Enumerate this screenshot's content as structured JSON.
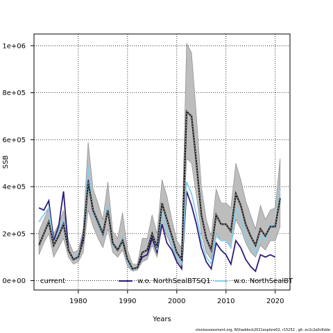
{
  "footer": "stockassessment.org, NShaddock2021explore02, r15252 , git: ec2c2a0c6dde",
  "chart_data": {
    "type": "line",
    "xlabel": "Years",
    "ylabel": "SSB",
    "xlim": [
      1971,
      2023
    ],
    "ylim": [
      -40000,
      1050000
    ],
    "grid": true,
    "xticks": [
      1980,
      1990,
      2000,
      2010,
      2020
    ],
    "yticks": [
      {
        "value": 0,
        "label": "0e+00"
      },
      {
        "value": 200000,
        "label": "2e+05"
      },
      {
        "value": 400000,
        "label": "4e+05"
      },
      {
        "value": 600000,
        "label": "6e+05"
      },
      {
        "value": 800000,
        "label": "8e+05"
      },
      {
        "value": 1000000,
        "label": "1e+06"
      }
    ],
    "legend_position": "bottom",
    "x": [
      1972,
      1973,
      1974,
      1975,
      1976,
      1977,
      1978,
      1979,
      1980,
      1981,
      1982,
      1983,
      1984,
      1985,
      1986,
      1987,
      1988,
      1989,
      1990,
      1991,
      1992,
      1993,
      1994,
      1995,
      1996,
      1997,
      1998,
      1999,
      2000,
      2001,
      2002,
      2003,
      2004,
      2005,
      2006,
      2007,
      2008,
      2009,
      2010,
      2011,
      2012,
      2013,
      2014,
      2015,
      2016,
      2017,
      2018,
      2019,
      2020,
      2021
    ],
    "series": [
      {
        "name": "current",
        "color": "#111111",
        "values": [
          150000,
          200000,
          250000,
          150000,
          190000,
          240000,
          130000,
          90000,
          100000,
          170000,
          420000,
          300000,
          250000,
          200000,
          300000,
          160000,
          130000,
          170000,
          90000,
          50000,
          55000,
          120000,
          130000,
          200000,
          140000,
          330000,
          260000,
          190000,
          120000,
          90000,
          720000,
          700000,
          500000,
          280000,
          180000,
          130000,
          280000,
          240000,
          240000,
          210000,
          370000,
          320000,
          240000,
          190000,
          150000,
          220000,
          190000,
          230000,
          230000,
          350000
        ],
        "lower": [
          110000,
          160000,
          200000,
          100000,
          140000,
          180000,
          100000,
          70000,
          80000,
          120000,
          300000,
          230000,
          180000,
          140000,
          220000,
          120000,
          100000,
          130000,
          60000,
          40000,
          45000,
          80000,
          90000,
          150000,
          100000,
          240000,
          190000,
          140000,
          90000,
          60000,
          520000,
          500000,
          360000,
          200000,
          120000,
          90000,
          200000,
          170000,
          170000,
          140000,
          260000,
          220000,
          160000,
          120000,
          100000,
          150000,
          130000,
          170000,
          170000,
          230000
        ],
        "upper": [
          210000,
          260000,
          310000,
          200000,
          240000,
          300000,
          170000,
          120000,
          130000,
          220000,
          590000,
          390000,
          330000,
          260000,
          420000,
          210000,
          180000,
          290000,
          130000,
          70000,
          70000,
          180000,
          180000,
          280000,
          200000,
          430000,
          360000,
          260000,
          170000,
          140000,
          1010000,
          970000,
          700000,
          400000,
          260000,
          190000,
          390000,
          330000,
          330000,
          310000,
          500000,
          430000,
          340000,
          280000,
          220000,
          320000,
          260000,
          300000,
          310000,
          520000
        ]
      },
      {
        "name": "w.o. NorthSealBTSQ1",
        "color": "#2a1a7a",
        "values": [
          310000,
          300000,
          340000,
          170000,
          230000,
          380000,
          130000,
          90000,
          100000,
          190000,
          430000,
          290000,
          240000,
          190000,
          310000,
          150000,
          130000,
          180000,
          90000,
          50000,
          55000,
          100000,
          110000,
          180000,
          120000,
          240000,
          160000,
          130000,
          80000,
          50000,
          380000,
          320000,
          240000,
          140000,
          80000,
          50000,
          160000,
          130000,
          110000,
          70000,
          170000,
          140000,
          90000,
          60000,
          40000,
          110000,
          100000,
          110000,
          100000,
          null
        ],
        "lower": [],
        "upper": []
      },
      {
        "name": "w.o. NorthSealBT",
        "color": "#87ceeb",
        "values": [
          250000,
          280000,
          310000,
          150000,
          200000,
          260000,
          130000,
          90000,
          110000,
          170000,
          490000,
          290000,
          240000,
          190000,
          320000,
          150000,
          130000,
          180000,
          80000,
          45000,
          55000,
          120000,
          130000,
          200000,
          130000,
          290000,
          220000,
          160000,
          100000,
          70000,
          420000,
          370000,
          280000,
          170000,
          100000,
          70000,
          190000,
          170000,
          170000,
          140000,
          310000,
          260000,
          190000,
          150000,
          110000,
          180000,
          170000,
          240000,
          230000,
          390000
        ],
        "lower": [],
        "upper": []
      }
    ]
  }
}
